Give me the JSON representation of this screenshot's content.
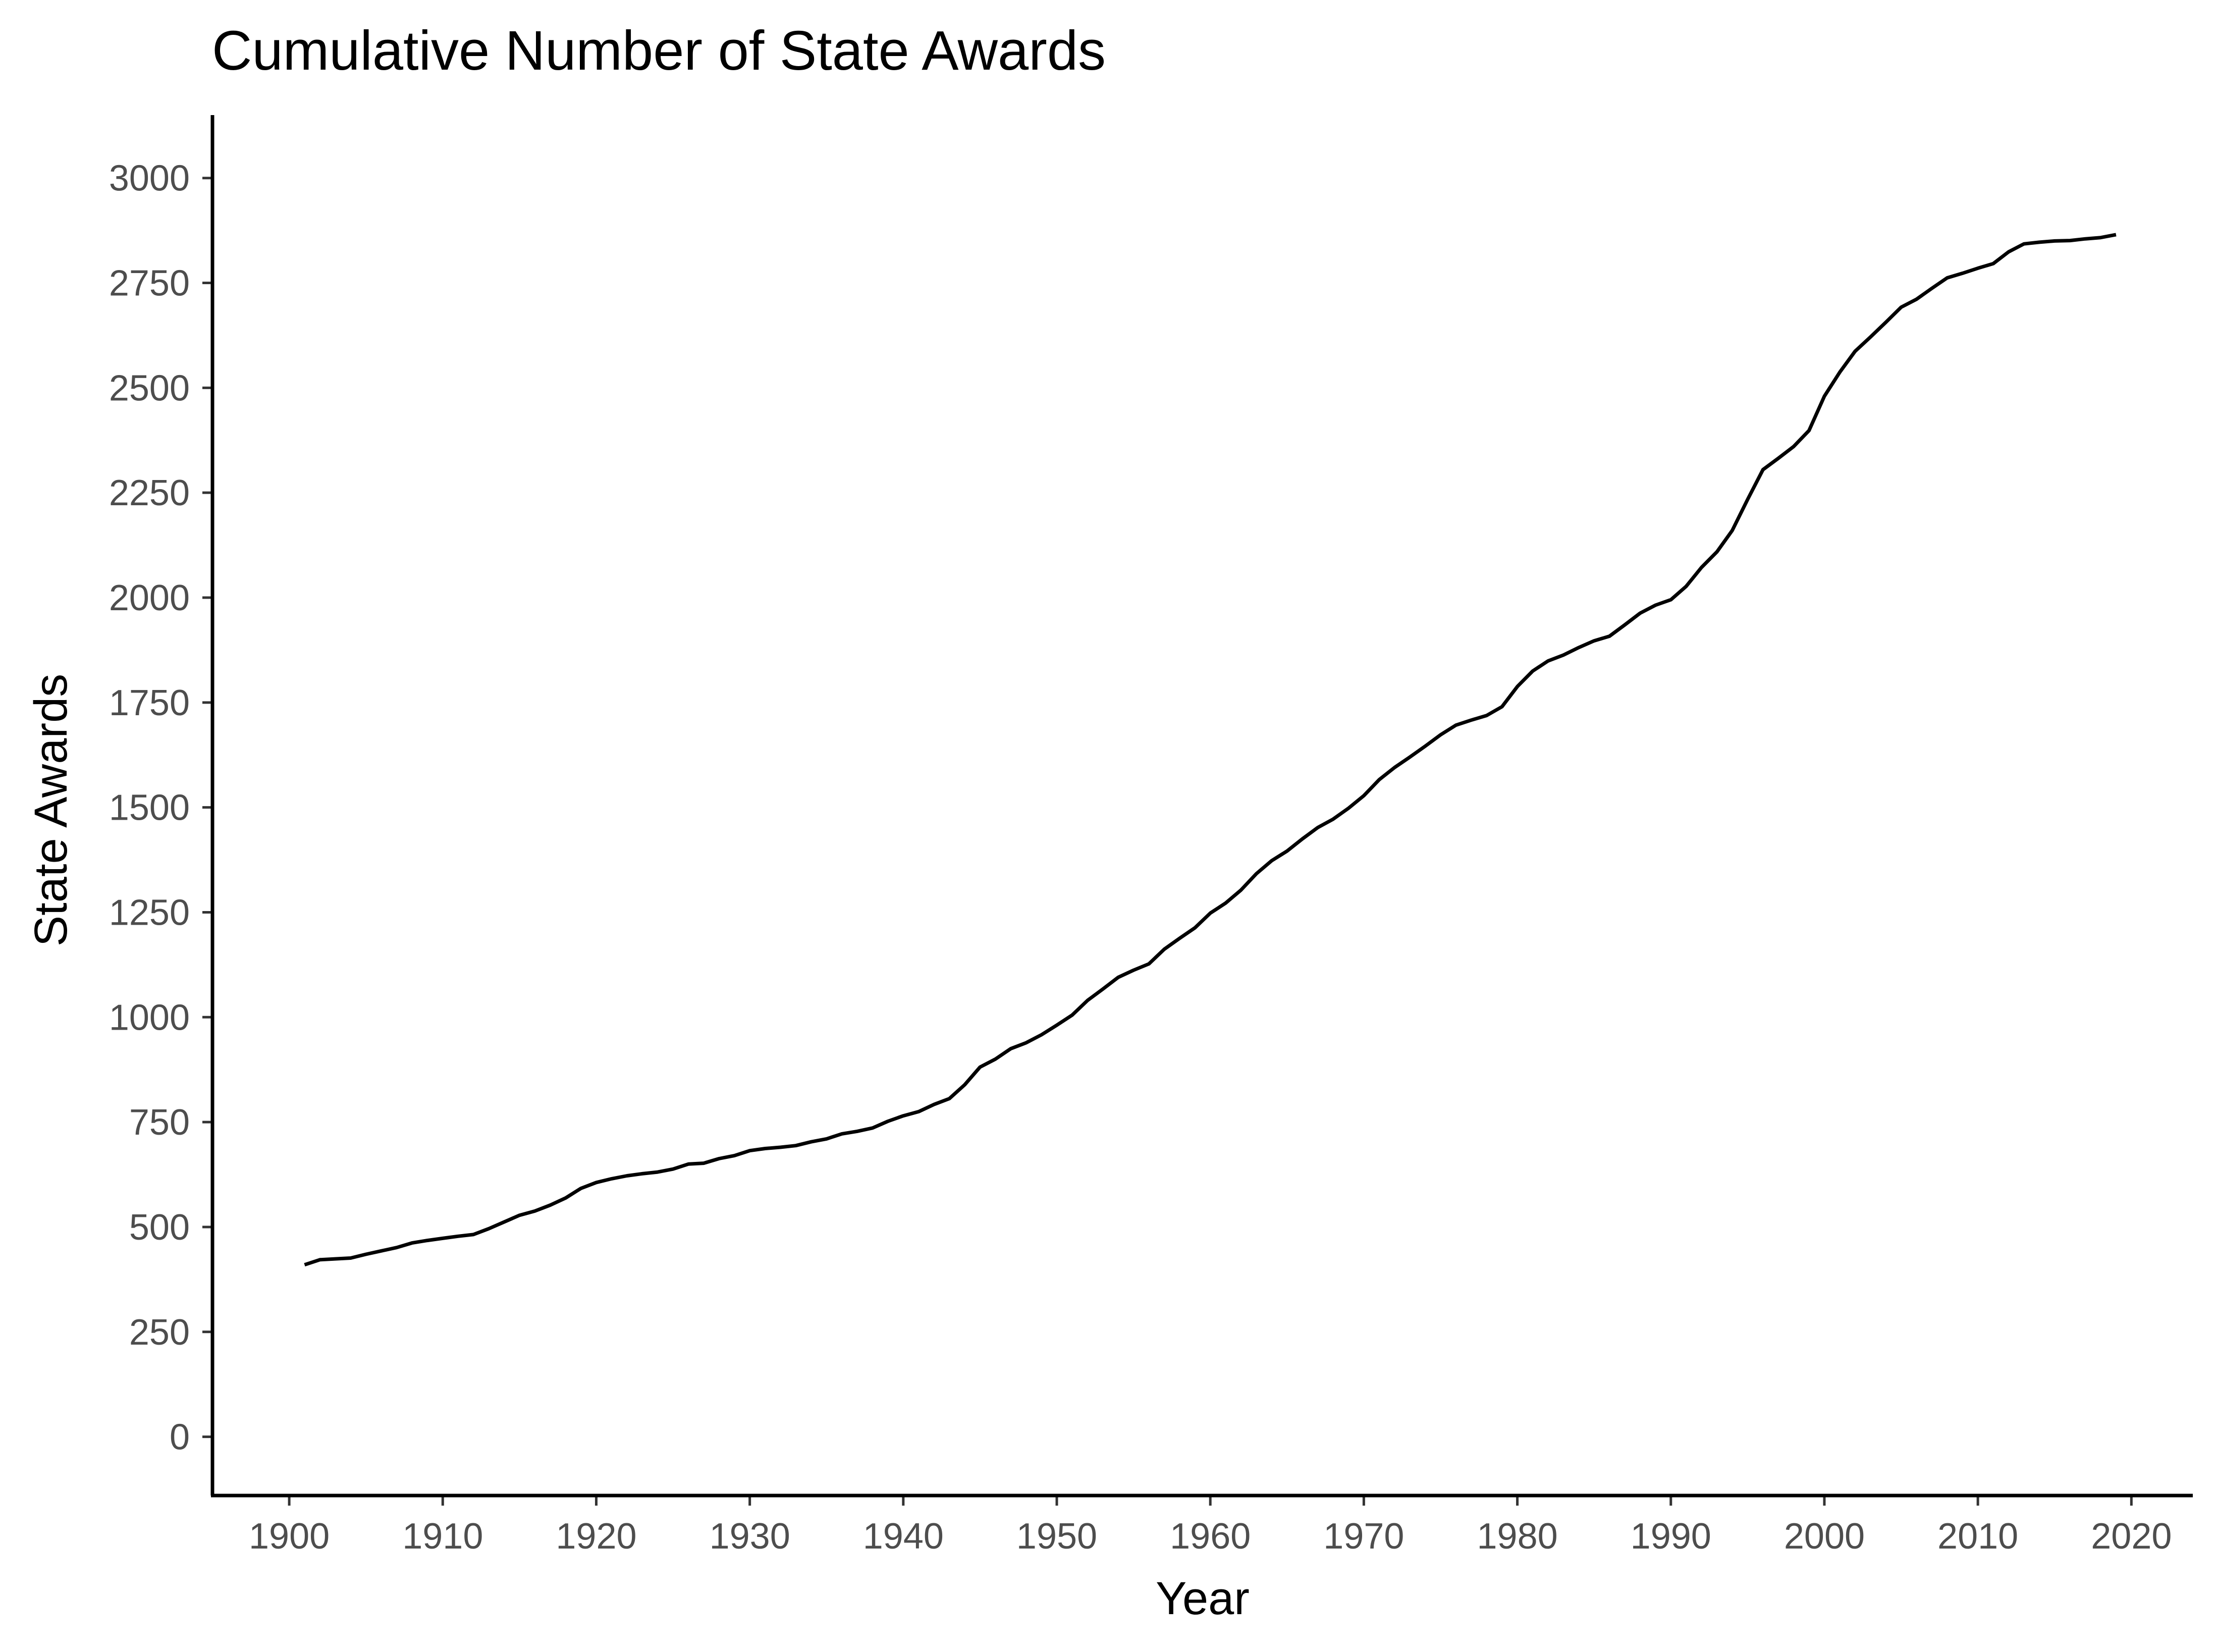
{
  "chart_data": {
    "type": "line",
    "title": "Cumulative Number of State Awards",
    "xlabel": "Year",
    "ylabel": "State Awards",
    "xlim": [
      1895,
      2024
    ],
    "ylim": [
      -140,
      3150
    ],
    "x_ticks": [
      1900,
      1910,
      1920,
      1930,
      1940,
      1950,
      1960,
      1970,
      1980,
      1990,
      2000,
      2010,
      2020
    ],
    "y_ticks": [
      0,
      250,
      500,
      750,
      1000,
      1250,
      1500,
      1750,
      2000,
      2250,
      2500,
      2750,
      3000
    ],
    "grid": false,
    "legend": "none",
    "line_color": "#000000",
    "series": [
      {
        "x": [
          1901,
          1902,
          1903,
          1904,
          1905,
          1906,
          1907,
          1908,
          1909,
          1910,
          1911,
          1912,
          1913,
          1914,
          1915,
          1916,
          1917,
          1918,
          1919,
          1920,
          1921,
          1922,
          1923,
          1924,
          1925,
          1926,
          1927,
          1928,
          1929,
          1930,
          1931,
          1932,
          1933,
          1934,
          1935,
          1936,
          1937,
          1938,
          1939,
          1940,
          1941,
          1942,
          1943,
          1944,
          1945,
          1946,
          1947,
          1948,
          1949,
          1950,
          1951,
          1952,
          1953,
          1954,
          1955,
          1956,
          1957,
          1958,
          1959,
          1960,
          1961,
          1962,
          1963,
          1964,
          1965,
          1966,
          1967,
          1968,
          1969,
          1970,
          1971,
          1972,
          1973,
          1974,
          1975,
          1976,
          1977,
          1978,
          1979,
          1980,
          1981,
          1982,
          1983,
          1984,
          1985,
          1986,
          1987,
          1988,
          1989,
          1990,
          1991,
          1992,
          1993,
          1994,
          1995,
          1996,
          1997,
          1998,
          1999,
          2000,
          2001,
          2002,
          2003,
          2004,
          2005,
          2006,
          2007,
          2008,
          2009,
          2010,
          2011,
          2012,
          2013,
          2014,
          2015,
          2016,
          2017,
          2018,
          2019
        ],
        "values": [
          410,
          422,
          424,
          426,
          435,
          443,
          451,
          462,
          468,
          473,
          478,
          482,
          496,
          512,
          528,
          538,
          552,
          569,
          592,
          606,
          615,
          622,
          627,
          631,
          638,
          650,
          652,
          663,
          670,
          682,
          687,
          690,
          694,
          703,
          710,
          722,
          728,
          736,
          752,
          765,
          775,
          792,
          806,
          839,
          881,
          900,
          925,
          939,
          958,
          981,
          1005,
          1040,
          1067,
          1095,
          1112,
          1127,
          1162,
          1188,
          1213,
          1248,
          1272,
          1303,
          1342,
          1373,
          1396,
          1425,
          1452,
          1472,
          1498,
          1528,
          1566,
          1595,
          1620,
          1646,
          1673,
          1696,
          1708,
          1719,
          1740,
          1788,
          1825,
          1849,
          1863,
          1881,
          1897,
          1908,
          1935,
          1963,
          1982,
          1995,
          2027,
          2072,
          2109,
          2160,
          2234,
          2305,
          2332,
          2360,
          2398,
          2480,
          2537,
          2587,
          2621,
          2656,
          2692,
          2711,
          2737,
          2762,
          2773,
          2785,
          2796,
          2824,
          2843,
          2847,
          2850,
          2851,
          2855,
          2858,
          2865
        ]
      }
    ]
  }
}
